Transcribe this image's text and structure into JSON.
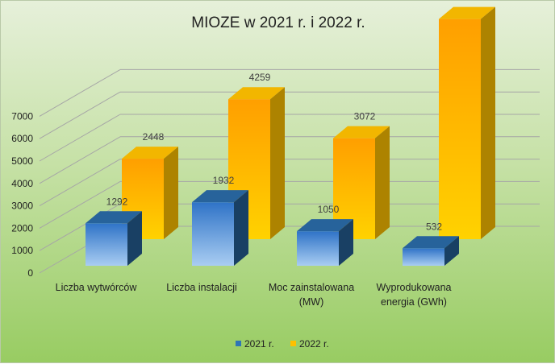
{
  "chart_data": {
    "type": "bar",
    "title": "MIOZE w 2021 r. i 2022 r.",
    "categories": [
      [
        "Liczba wytwórców"
      ],
      [
        "Liczba instalacji"
      ],
      [
        "Moc zainstalowana",
        "(MW)"
      ],
      [
        "Wyprodukowana",
        "energia (GWh)"
      ]
    ],
    "series": [
      {
        "name": "2021 r.",
        "values": [
          1292,
          1932,
          1050,
          532
        ],
        "color": "#2e75b6"
      },
      {
        "name": "2022 r.",
        "values": [
          2448,
          4259,
          3072,
          6700
        ],
        "color": "#ffc000"
      }
    ],
    "ylim": [
      0,
      7000
    ],
    "yticks": [
      0,
      1000,
      2000,
      3000,
      4000,
      5000,
      6000,
      7000
    ],
    "grid": true,
    "legend_position": "bottom",
    "view": "3d-columns"
  }
}
